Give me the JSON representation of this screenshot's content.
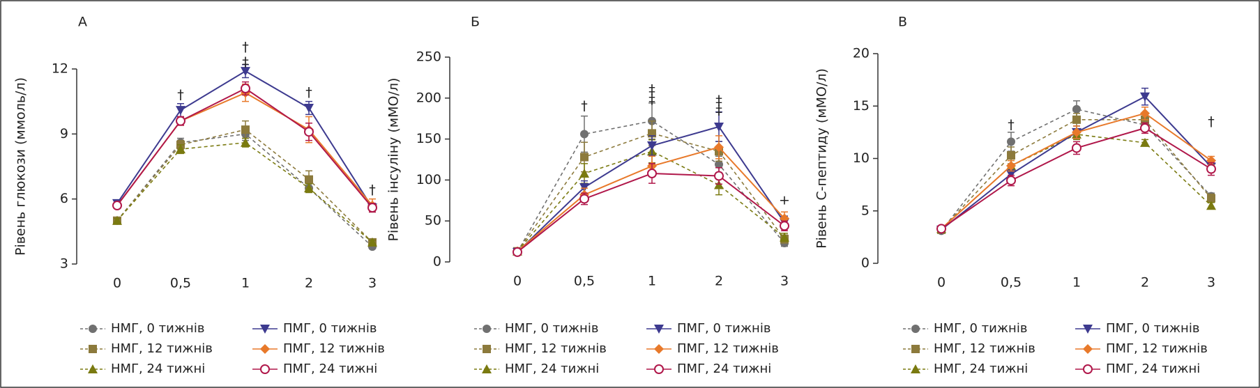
{
  "chart_data": [
    {
      "type": "line",
      "title": "А",
      "y_label": "Рівень глюкози (ммоль/л)",
      "categories": [
        "0",
        "0,5",
        "1",
        "2",
        "3"
      ],
      "ylim": [
        3,
        12
      ],
      "yticks": [
        3,
        6,
        9,
        12
      ],
      "series": [
        {
          "name": "НМГ, 0 тижнів",
          "color": "#707070",
          "marker": "circle",
          "dashed": true,
          "values": [
            5.0,
            8.6,
            9.0,
            6.5,
            3.8
          ],
          "errors": [
            0.1,
            0.2,
            0.3,
            0.2,
            0.1
          ]
        },
        {
          "name": "НМГ, 12 тижнів",
          "color": "#8c7a3c",
          "marker": "square",
          "dashed": true,
          "values": [
            5.0,
            8.5,
            9.2,
            6.9,
            4.0
          ],
          "errors": [
            0.1,
            0.2,
            0.4,
            0.4,
            0.1
          ]
        },
        {
          "name": "НМГ, 24 тижні",
          "color": "#7a7a10",
          "marker": "triangle-up",
          "dashed": true,
          "values": [
            5.0,
            8.3,
            8.6,
            6.5,
            4.0
          ],
          "errors": [
            0.1,
            0.2,
            0.2,
            0.2,
            0.1
          ]
        },
        {
          "name": "ПМГ, 0 тижнів",
          "color": "#3d3a8f",
          "marker": "triangle-down",
          "dashed": false,
          "values": [
            5.8,
            10.1,
            11.9,
            10.2,
            5.6
          ],
          "errors": [
            0.1,
            0.3,
            0.3,
            0.3,
            0.2
          ]
        },
        {
          "name": "ПМГ, 12 тижнів",
          "color": "#e8792a",
          "marker": "diamond",
          "dashed": false,
          "values": [
            5.7,
            9.6,
            10.9,
            9.2,
            5.7
          ],
          "errors": [
            0.1,
            0.2,
            0.4,
            0.6,
            0.3
          ]
        },
        {
          "name": "ПМГ, 24 тижні",
          "color": "#b0174a",
          "marker": "open-circle",
          "dashed": false,
          "values": [
            5.7,
            9.6,
            11.1,
            9.1,
            5.6
          ],
          "errors": [
            0.1,
            0.2,
            0.3,
            0.4,
            0.2
          ]
        }
      ],
      "annotations": [
        {
          "text": "†",
          "x": 1,
          "y": 10.8
        },
        {
          "text": "†",
          "x": 2,
          "y": 13.0
        },
        {
          "text": "‡",
          "x": 2,
          "y": 12.3
        },
        {
          "text": "†",
          "x": 3,
          "y": 10.9
        },
        {
          "text": "†",
          "x": 4,
          "y": 6.4
        }
      ]
    },
    {
      "type": "line",
      "title": "Б",
      "y_label": "Рівень інсуліну (мМО/л)",
      "categories": [
        "0",
        "0,5",
        "1",
        "2",
        "3"
      ],
      "ylim": [
        0,
        250
      ],
      "yticks": [
        0,
        50,
        100,
        150,
        200,
        250
      ],
      "series": [
        {
          "name": "НМГ, 0 тижнів",
          "color": "#707070",
          "marker": "circle",
          "dashed": true,
          "values": [
            12,
            156,
            172,
            119,
            23
          ],
          "errors": [
            2,
            22,
            22,
            10,
            4
          ]
        },
        {
          "name": "НМГ, 12 тижнів",
          "color": "#8c7a3c",
          "marker": "square",
          "dashed": true,
          "values": [
            13,
            128,
            157,
            135,
            28
          ],
          "errors": [
            2,
            18,
            15,
            12,
            5
          ]
        },
        {
          "name": "НМГ, 24 тижні",
          "color": "#7a7a10",
          "marker": "triangle-up",
          "dashed": true,
          "values": [
            13,
            108,
            135,
            94,
            30
          ],
          "errors": [
            2,
            12,
            14,
            12,
            5
          ]
        },
        {
          "name": "ПМГ, 0 тижнів",
          "color": "#3d3a8f",
          "marker": "triangle-down",
          "dashed": false,
          "values": [
            12,
            91,
            142,
            165,
            48
          ],
          "errors": [
            2,
            8,
            12,
            18,
            8
          ]
        },
        {
          "name": "ПМГ, 12 тижнів",
          "color": "#e8792a",
          "marker": "diamond",
          "dashed": false,
          "values": [
            13,
            82,
            117,
            140,
            53
          ],
          "errors": [
            2,
            8,
            12,
            14,
            8
          ]
        },
        {
          "name": "ПМГ, 24 тижні",
          "color": "#b0174a",
          "marker": "open-circle",
          "dashed": false,
          "values": [
            12,
            77,
            108,
            105,
            44
          ],
          "errors": [
            2,
            7,
            12,
            10,
            6
          ]
        }
      ],
      "annotations": [
        {
          "text": "†",
          "x": 1,
          "y": 190
        },
        {
          "text": "‡",
          "x": 2,
          "y": 210
        },
        {
          "text": "‡",
          "x": 2,
          "y": 198
        },
        {
          "text": "‡",
          "x": 3,
          "y": 197
        },
        {
          "text": "‡",
          "x": 3,
          "y": 185
        },
        {
          "text": "+",
          "x": 4,
          "y": 75
        }
      ]
    },
    {
      "type": "line",
      "title": "В",
      "y_label": "Рівень С-пептиду (мМО/л)",
      "categories": [
        "0",
        "0,5",
        "1",
        "2",
        "3"
      ],
      "ylim": [
        0,
        20
      ],
      "yticks": [
        0,
        5,
        10,
        15,
        20
      ],
      "series": [
        {
          "name": "НМГ, 0 тижнів",
          "color": "#707070",
          "marker": "circle",
          "dashed": true,
          "values": [
            3.1,
            11.6,
            14.7,
            13.2,
            6.4
          ],
          "errors": [
            0.1,
            0.9,
            0.8,
            0.5,
            0.3
          ]
        },
        {
          "name": "НМГ, 12 тижнів",
          "color": "#8c7a3c",
          "marker": "square",
          "dashed": true,
          "values": [
            3.2,
            10.3,
            13.7,
            13.7,
            6.2
          ],
          "errors": [
            0.1,
            0.8,
            0.6,
            0.5,
            0.4
          ]
        },
        {
          "name": "НМГ, 24 тижні",
          "color": "#7a7a10",
          "marker": "triangle-up",
          "dashed": true,
          "values": [
            3.3,
            9.3,
            12.3,
            11.5,
            5.5
          ],
          "errors": [
            0.1,
            0.5,
            0.5,
            0.3,
            0.3
          ]
        },
        {
          "name": "ПМГ, 0 тижнів",
          "color": "#3d3a8f",
          "marker": "triangle-down",
          "dashed": false,
          "values": [
            3.2,
            8.5,
            12.5,
            15.9,
            9.2
          ],
          "errors": [
            0.1,
            0.4,
            0.6,
            0.8,
            0.4
          ]
        },
        {
          "name": "ПМГ, 12 тижнів",
          "color": "#e8792a",
          "marker": "diamond",
          "dashed": false,
          "values": [
            3.3,
            9.3,
            12.5,
            14.3,
            9.8
          ],
          "errors": [
            0.1,
            0.5,
            0.6,
            0.6,
            0.4
          ]
        },
        {
          "name": "ПМГ, 24 тижні",
          "color": "#b0174a",
          "marker": "open-circle",
          "dashed": false,
          "values": [
            3.3,
            7.9,
            11.0,
            12.9,
            9.0
          ],
          "errors": [
            0.1,
            0.5,
            0.6,
            0.5,
            0.6
          ]
        }
      ],
      "annotations": [
        {
          "text": "†",
          "x": 1,
          "y": 13.2
        },
        {
          "text": "†",
          "x": 4,
          "y": 13.5
        }
      ]
    }
  ]
}
